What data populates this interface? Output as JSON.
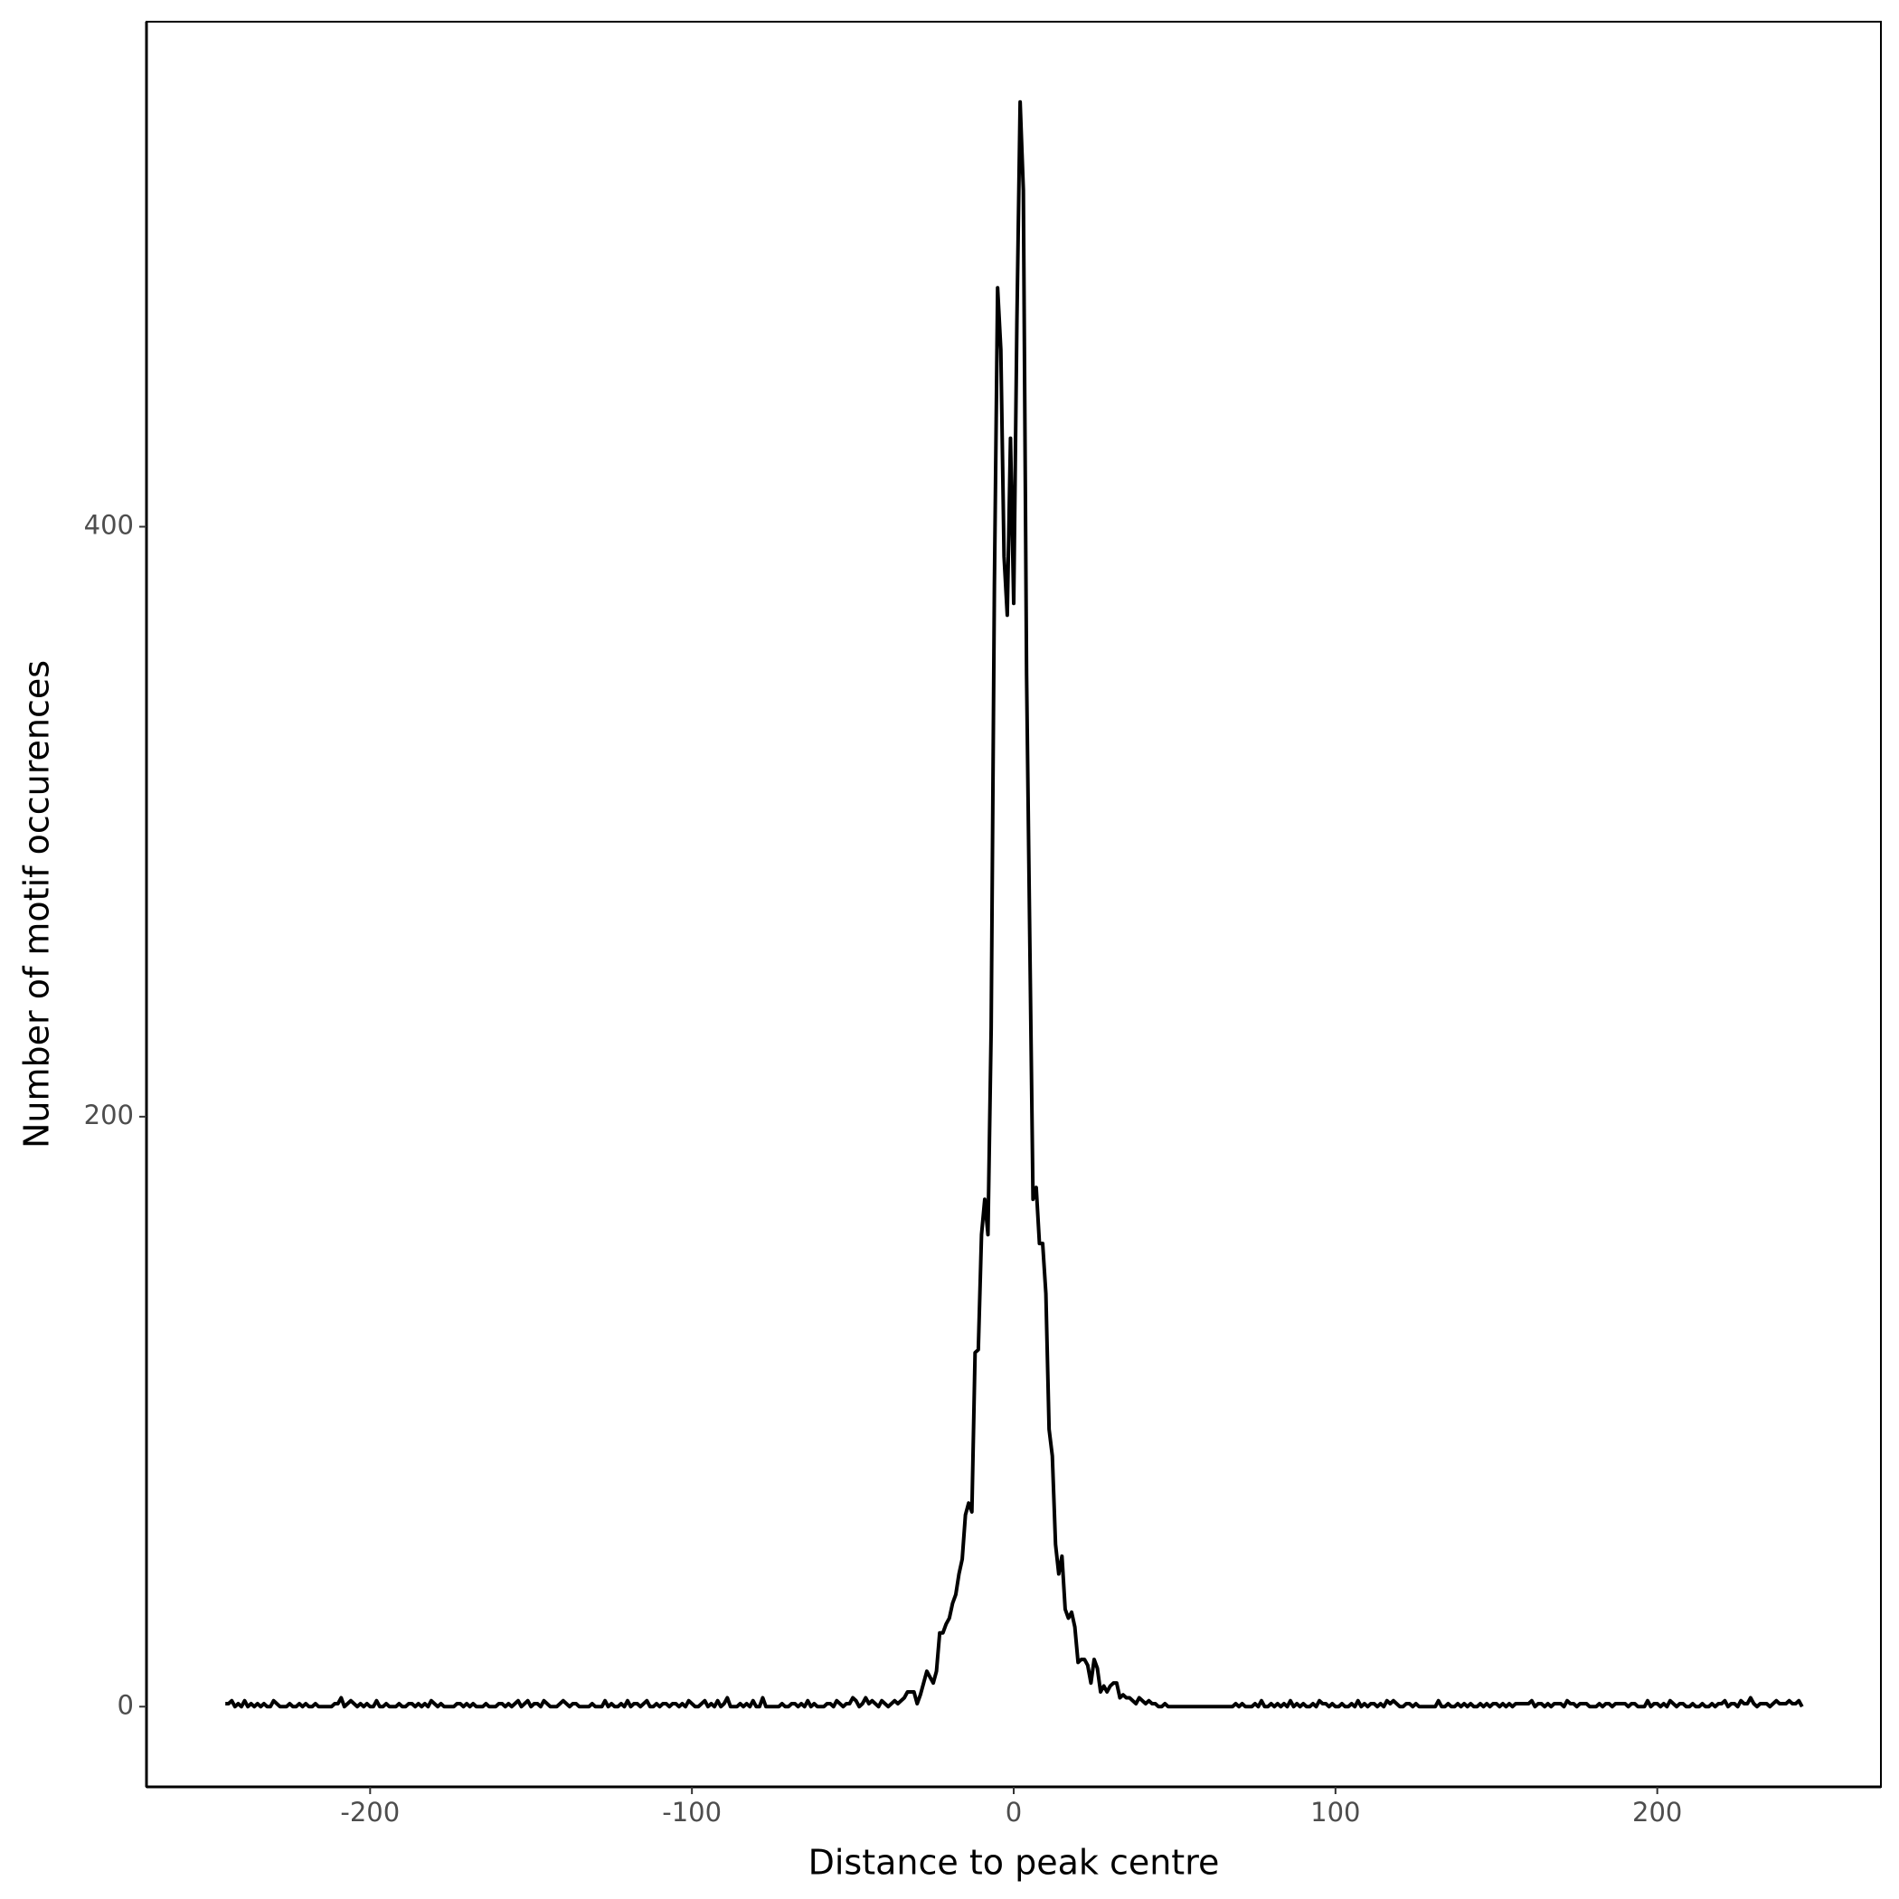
{
  "chart_data": {
    "type": "line",
    "xlabel": "Distance to peak centre",
    "ylabel": "Number of motif occurences",
    "xlim": [
      -269.5,
      269.5
    ],
    "xticks": [
      -200,
      -100,
      0,
      100,
      200
    ],
    "ylim": [
      -27.2,
      571.2
    ],
    "yticks": [
      0,
      200,
      400
    ],
    "grid": false,
    "x": [
      -245,
      -244,
      -243,
      -242,
      -241,
      -240,
      -239,
      -238,
      -237,
      -236,
      -235,
      -234,
      -233,
      -232,
      -231,
      -230,
      -229,
      -228,
      -227,
      -226,
      -225,
      -224,
      -223,
      -222,
      -221,
      -220,
      -219,
      -218,
      -217,
      -216,
      -215,
      -214,
      -213,
      -212,
      -211,
      -210,
      -209,
      -208,
      -207,
      -206,
      -205,
      -204,
      -203,
      -202,
      -201,
      -200,
      -199,
      -198,
      -197,
      -196,
      -195,
      -194,
      -193,
      -192,
      -191,
      -190,
      -189,
      -188,
      -187,
      -186,
      -185,
      -184,
      -183,
      -182,
      -181,
      -180,
      -179,
      -178,
      -177,
      -176,
      -175,
      -174,
      -173,
      -172,
      -171,
      -170,
      -169,
      -168,
      -167,
      -166,
      -165,
      -164,
      -163,
      -162,
      -161,
      -160,
      -159,
      -158,
      -157,
      -156,
      -155,
      -154,
      -153,
      -152,
      -151,
      -150,
      -149,
      -148,
      -147,
      -146,
      -145,
      -144,
      -143,
      -142,
      -141,
      -140,
      -139,
      -138,
      -137,
      -136,
      -135,
      -134,
      -133,
      -132,
      -131,
      -130,
      -129,
      -128,
      -127,
      -126,
      -125,
      -124,
      -123,
      -122,
      -121,
      -120,
      -119,
      -118,
      -117,
      -116,
      -115,
      -114,
      -113,
      -112,
      -111,
      -110,
      -109,
      -108,
      -107,
      -106,
      -105,
      -104,
      -103,
      -102,
      -101,
      -100,
      -99,
      -98,
      -97,
      -96,
      -95,
      -94,
      -93,
      -92,
      -91,
      -90,
      -89,
      -88,
      -87,
      -86,
      -85,
      -84,
      -83,
      -82,
      -81,
      -80,
      -79,
      -78,
      -77,
      -76,
      -75,
      -74,
      -73,
      -72,
      -71,
      -70,
      -69,
      -68,
      -67,
      -66,
      -65,
      -64,
      -63,
      -62,
      -61,
      -60,
      -59,
      -58,
      -57,
      -56,
      -55,
      -54,
      -53,
      -52,
      -51,
      -50,
      -49,
      -48,
      -47,
      -46,
      -45,
      -44,
      -43,
      -42,
      -41,
      -40,
      -39,
      -38,
      -37,
      -36,
      -35,
      -34,
      -33,
      -32,
      -31,
      -30,
      -29,
      -28,
      -27,
      -26,
      -25,
      -24,
      -23,
      -22,
      -21,
      -20,
      -19,
      -18,
      -17,
      -16,
      -15,
      -14,
      -13,
      -12,
      -11,
      -10,
      -9,
      -8,
      -7,
      -6,
      -5,
      -4,
      -3,
      -2,
      -1,
      0,
      1,
      2,
      3,
      4,
      5,
      6,
      7,
      8,
      9,
      10,
      11,
      12,
      13,
      14,
      15,
      16,
      17,
      18,
      19,
      20,
      21,
      22,
      23,
      24,
      25,
      26,
      27,
      28,
      29,
      30,
      31,
      32,
      33,
      34,
      35,
      36,
      37,
      38,
      39,
      40,
      41,
      42,
      43,
      44,
      45,
      46,
      47,
      48,
      49,
      50,
      51,
      52,
      53,
      54,
      55,
      56,
      57,
      58,
      59,
      60,
      61,
      62,
      63,
      64,
      65,
      66,
      67,
      68,
      69,
      70,
      71,
      72,
      73,
      74,
      75,
      76,
      77,
      78,
      79,
      80,
      81,
      82,
      83,
      84,
      85,
      86,
      87,
      88,
      89,
      90,
      91,
      92,
      93,
      94,
      95,
      96,
      97,
      98,
      99,
      100,
      101,
      102,
      103,
      104,
      105,
      106,
      107,
      108,
      109,
      110,
      111,
      112,
      113,
      114,
      115,
      116,
      117,
      118,
      119,
      120,
      121,
      122,
      123,
      124,
      125,
      126,
      127,
      128,
      129,
      130,
      131,
      132,
      133,
      134,
      135,
      136,
      137,
      138,
      139,
      140,
      141,
      142,
      143,
      144,
      145,
      146,
      147,
      148,
      149,
      150,
      151,
      152,
      153,
      154,
      155,
      156,
      157,
      158,
      159,
      160,
      161,
      162,
      163,
      164,
      165,
      166,
      167,
      168,
      169,
      170,
      171,
      172,
      173,
      174,
      175,
      176,
      177,
      178,
      179,
      180,
      181,
      182,
      183,
      184,
      185,
      186,
      187,
      188,
      189,
      190,
      191,
      192,
      193,
      194,
      195,
      196,
      197,
      198,
      199,
      200,
      201,
      202,
      203,
      204,
      205,
      206,
      207,
      208,
      209,
      210,
      211,
      212,
      213,
      214,
      215,
      216,
      217,
      218,
      219,
      220,
      221,
      222,
      223,
      224,
      225,
      226,
      227,
      228,
      229,
      230,
      231,
      232,
      233,
      234,
      235,
      236,
      237,
      238,
      239,
      240,
      241,
      242,
      243,
      244,
      245
    ],
    "series": [
      {
        "name": "occurrences",
        "color": "#000000",
        "values": [
          1,
          1,
          2,
          0,
          1,
          0,
          2,
          0,
          1,
          0,
          1,
          0,
          1,
          0,
          0,
          2,
          1,
          0,
          0,
          0,
          1,
          0,
          0,
          1,
          0,
          1,
          0,
          0,
          1,
          0,
          0,
          0,
          0,
          0,
          1,
          1,
          3,
          0,
          1,
          2,
          1,
          0,
          1,
          0,
          1,
          0,
          0,
          2,
          0,
          0,
          1,
          0,
          0,
          0,
          1,
          0,
          0,
          1,
          1,
          0,
          1,
          0,
          1,
          0,
          2,
          1,
          0,
          1,
          0,
          0,
          0,
          0,
          1,
          1,
          0,
          1,
          0,
          1,
          0,
          0,
          0,
          1,
          0,
          0,
          0,
          1,
          1,
          0,
          1,
          0,
          1,
          2,
          0,
          1,
          2,
          0,
          1,
          1,
          0,
          2,
          1,
          0,
          0,
          0,
          1,
          2,
          1,
          0,
          1,
          1,
          0,
          0,
          0,
          0,
          1,
          0,
          0,
          0,
          2,
          0,
          1,
          0,
          0,
          1,
          0,
          2,
          0,
          1,
          1,
          0,
          1,
          2,
          0,
          0,
          1,
          0,
          1,
          1,
          0,
          1,
          1,
          0,
          1,
          0,
          2,
          1,
          0,
          0,
          1,
          2,
          0,
          1,
          0,
          2,
          0,
          1,
          3,
          0,
          0,
          0,
          1,
          0,
          1,
          0,
          2,
          0,
          0,
          3,
          0,
          0,
          0,
          0,
          0,
          1,
          0,
          0,
          1,
          1,
          0,
          1,
          0,
          2,
          0,
          1,
          0,
          0,
          0,
          1,
          1,
          0,
          2,
          1,
          0,
          1,
          1,
          3,
          2,
          0,
          1,
          3,
          1,
          2,
          1,
          0,
          2,
          1,
          0,
          1,
          2,
          1,
          2,
          3,
          5,
          5,
          5,
          1,
          4,
          8,
          12,
          10,
          8,
          12,
          25,
          25,
          28,
          30,
          35,
          38,
          45,
          50,
          65,
          69,
          66,
          120,
          121,
          160,
          172,
          160,
          230,
          380,
          481,
          460,
          390,
          370,
          430,
          374,
          470,
          544,
          514,
          350,
          260,
          172,
          176,
          157,
          157,
          140,
          94,
          85,
          55,
          45,
          51,
          33,
          30,
          32,
          27,
          15,
          16,
          16,
          14,
          8,
          16,
          13,
          5,
          7,
          5,
          7,
          8,
          8,
          3,
          4,
          3,
          3,
          2,
          1,
          3,
          2,
          1,
          2,
          1,
          1,
          0,
          0,
          1,
          0,
          0,
          0,
          0,
          0,
          0,
          0,
          0,
          0,
          0,
          0,
          0,
          0,
          0,
          0,
          0,
          0,
          0,
          0,
          0,
          0,
          1,
          0,
          1,
          0,
          0,
          0,
          1,
          0,
          2,
          0,
          0,
          1,
          0,
          1,
          0,
          1,
          0,
          2,
          0,
          1,
          0,
          1,
          0,
          0,
          1,
          0,
          2,
          1,
          1,
          0,
          1,
          0,
          0,
          1,
          0,
          0,
          1,
          0,
          2,
          0,
          1,
          0,
          1,
          1,
          0,
          1,
          0,
          2,
          1,
          2,
          1,
          0,
          0,
          1,
          1,
          0,
          1,
          0,
          0,
          0,
          0,
          0,
          0,
          2,
          0,
          0,
          1,
          0,
          0,
          1,
          0,
          1,
          0,
          1,
          0,
          0,
          1,
          0,
          1,
          0,
          1,
          1,
          0,
          1,
          0,
          1,
          0,
          1,
          1,
          1,
          1,
          1,
          2,
          0,
          1,
          1,
          0,
          1,
          0,
          1,
          1,
          1,
          0,
          2,
          1,
          1,
          0,
          1,
          1,
          1,
          0,
          0,
          0,
          1,
          0,
          1,
          1,
          0,
          1,
          1,
          1,
          1,
          0,
          1,
          1,
          0,
          0,
          0,
          2,
          0,
          1,
          1,
          0,
          1,
          0,
          2,
          1,
          0,
          1,
          1,
          0,
          0,
          1,
          0,
          0,
          1,
          0,
          0,
          1,
          0,
          1,
          1,
          2,
          0,
          1,
          1,
          0,
          2,
          1,
          1,
          3,
          1,
          0,
          1,
          1,
          1,
          0,
          1,
          2,
          1,
          1,
          1,
          2,
          1,
          1,
          2,
          0
        ]
      }
    ]
  }
}
